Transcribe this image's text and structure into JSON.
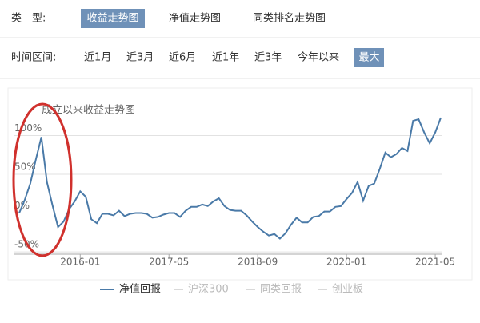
{
  "ui": {
    "type_label": "类　型:",
    "type_tabs": [
      "收益走势图",
      "净值走势图",
      "同类排名走势图"
    ],
    "range_label": "时间区间:",
    "range_tabs": [
      "近1月",
      "近3月",
      "近6月",
      "近1年",
      "近3年",
      "今年以来",
      "最大"
    ]
  },
  "chart_data": {
    "type": "line",
    "title": "成立以来收益走势图",
    "x": [
      "2015-02",
      "2015-03",
      "2015-04",
      "2015-05",
      "2015-06",
      "2015-07",
      "2015-08",
      "2015-09",
      "2015-10",
      "2015-11",
      "2015-12",
      "2016-01",
      "2016-02",
      "2016-03",
      "2016-04",
      "2016-05",
      "2016-06",
      "2016-07",
      "2016-08",
      "2016-09",
      "2016-10",
      "2016-11",
      "2016-12",
      "2017-01",
      "2017-02",
      "2017-03",
      "2017-04",
      "2017-05",
      "2017-06",
      "2017-07",
      "2017-08",
      "2017-09",
      "2017-10",
      "2017-11",
      "2017-12",
      "2018-01",
      "2018-02",
      "2018-03",
      "2018-04",
      "2018-05",
      "2018-06",
      "2018-07",
      "2018-08",
      "2018-09",
      "2018-10",
      "2018-11",
      "2018-12",
      "2019-01",
      "2019-02",
      "2019-03",
      "2019-04",
      "2019-05",
      "2019-06",
      "2019-07",
      "2019-08",
      "2019-09",
      "2019-10",
      "2019-11",
      "2019-12",
      "2020-01",
      "2020-02",
      "2020-03",
      "2020-04",
      "2020-05",
      "2020-06",
      "2020-07",
      "2020-08",
      "2020-09",
      "2020-10",
      "2020-11",
      "2020-12",
      "2021-01",
      "2021-02",
      "2021-03",
      "2021-04",
      "2021-05",
      "2021-06"
    ],
    "series": [
      {
        "name": "净值回报",
        "color": "#4a7aa8",
        "values": [
          0,
          17,
          38,
          69,
          98,
          40,
          10,
          -18,
          -11,
          5,
          15,
          28,
          21,
          -8,
          -13,
          -1,
          -1,
          -3,
          3,
          -4,
          -1,
          0,
          0,
          -1,
          -6,
          -5,
          -2,
          0,
          0,
          -5,
          3,
          8,
          8,
          11,
          9,
          15,
          19,
          9,
          4,
          3,
          3,
          -3,
          -11,
          -18,
          -24,
          -29,
          -27,
          -33,
          -26,
          -15,
          -6,
          -12,
          -12,
          -5,
          -4,
          2,
          2,
          8,
          9,
          18,
          26,
          40,
          16,
          35,
          38,
          57,
          78,
          72,
          76,
          84,
          80,
          119,
          121,
          104,
          90,
          104,
          123
        ]
      }
    ],
    "inactive_legend": [
      "沪深300",
      "同类回报",
      "创业板"
    ],
    "xticks": [
      "2016-01",
      "2017-05",
      "2018-09",
      "2020-01",
      "2021-05"
    ],
    "ylim": [
      -53,
      153
    ],
    "yticks": [
      {
        "value": -50,
        "label": "-50%"
      },
      {
        "value": 0,
        "label": "0%"
      },
      {
        "value": 50,
        "label": "50%"
      },
      {
        "value": 100,
        "label": "100%"
      }
    ],
    "grid": true
  }
}
